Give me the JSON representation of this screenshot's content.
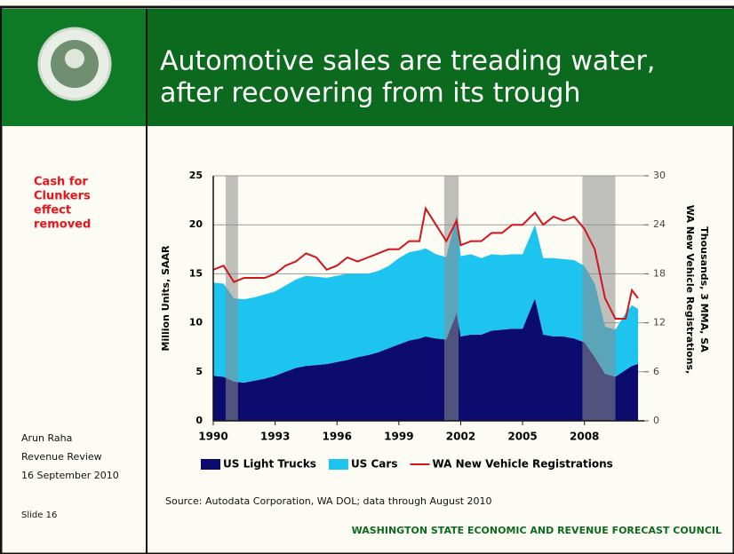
{
  "slide": {
    "title": [
      "Automotive sales are treading water,",
      "after recovering from its trough"
    ],
    "note": [
      "Cash for",
      "Clunkers",
      "effect",
      "removed"
    ],
    "author": [
      "Arun Raha",
      "Revenue Review",
      "16 September 2010"
    ],
    "slide_number": "Slide 16",
    "source": "Source: Autodata Corporation, WA DOL; data through August 2010",
    "footer": "WASHINGTON STATE ECONOMIC AND REVENUE FORECAST COUNCIL"
  },
  "chart_data": {
    "type": "stacked-area-line",
    "y_label": "Million Units, SAAR",
    "y2_label": [
      "WA New Vehicle Registrations,",
      "Thousands, 3 MMA, SA"
    ],
    "x": [
      1990.0,
      1990.5,
      1991.0,
      1991.5,
      1992.0,
      1992.5,
      1993.0,
      1993.5,
      1994.0,
      1994.5,
      1995.0,
      1995.5,
      1996.0,
      1996.5,
      1997.0,
      1997.5,
      1998.0,
      1998.5,
      1999.0,
      1999.5,
      2000.0,
      2000.3,
      2000.8,
      2001.3,
      2001.8,
      2002.0,
      2002.5,
      2003.0,
      2003.5,
      2004.0,
      2004.5,
      2005.0,
      2005.6,
      2006.0,
      2006.5,
      2007.0,
      2007.5,
      2008.0,
      2008.5,
      2009.0,
      2009.5,
      2010.0,
      2010.3,
      2010.6
    ],
    "series": [
      {
        "name": "US Light Trucks",
        "color": "#0c0c6e",
        "values": [
          4.6,
          4.5,
          4.0,
          3.9,
          4.1,
          4.3,
          4.6,
          5.0,
          5.4,
          5.6,
          5.7,
          5.8,
          6.0,
          6.2,
          6.5,
          6.7,
          7.0,
          7.4,
          7.8,
          8.2,
          8.4,
          8.6,
          8.4,
          8.3,
          11.0,
          8.6,
          8.8,
          8.8,
          9.2,
          9.3,
          9.4,
          9.4,
          12.5,
          8.8,
          8.6,
          8.6,
          8.4,
          8.0,
          6.5,
          4.8,
          4.5,
          5.2,
          5.6,
          5.8
        ]
      },
      {
        "name": "US Cars",
        "color": "#1ec4f0",
        "values": [
          9.5,
          9.5,
          8.5,
          8.5,
          8.5,
          8.6,
          8.6,
          8.8,
          9.0,
          9.2,
          9.0,
          8.8,
          8.8,
          8.8,
          8.5,
          8.3,
          8.3,
          8.4,
          8.8,
          9.0,
          9.0,
          9.0,
          8.6,
          8.4,
          10.0,
          8.2,
          8.2,
          7.8,
          7.8,
          7.6,
          7.6,
          7.6,
          7.5,
          7.8,
          8.0,
          7.9,
          8.0,
          7.8,
          7.5,
          4.8,
          4.8,
          5.8,
          6.2,
          5.6
        ]
      },
      {
        "name": "WA New Vehicle Registrations",
        "color": "#d4141c",
        "axis": "y2",
        "values": [
          18.5,
          19,
          17,
          17.5,
          17.5,
          17.5,
          18,
          19,
          19.5,
          20.5,
          20,
          18.5,
          19,
          20,
          19.5,
          20,
          20.5,
          21,
          21,
          22,
          22,
          26,
          24,
          22,
          24.5,
          21.5,
          22,
          22,
          23,
          23,
          24,
          24,
          25.5,
          24,
          25,
          24.5,
          25,
          23.5,
          21,
          15,
          12.5,
          12.5,
          16,
          15
        ]
      }
    ],
    "recessions": [
      [
        1990.6,
        1991.2
      ],
      [
        2001.2,
        2001.9
      ],
      [
        2007.9,
        2009.5
      ]
    ],
    "recession_color": "#8c8c8c",
    "xlim": [
      1990,
      2010.9
    ],
    "xticks": [
      1990,
      1993,
      1996,
      1999,
      2002,
      2005,
      2008
    ],
    "ylim": [
      0,
      25
    ],
    "yticks": [
      0,
      5,
      10,
      15,
      20,
      25
    ],
    "y2lim": [
      0,
      30
    ],
    "y2ticks": [
      0,
      6,
      12,
      18,
      24,
      30
    ],
    "grid": true
  }
}
